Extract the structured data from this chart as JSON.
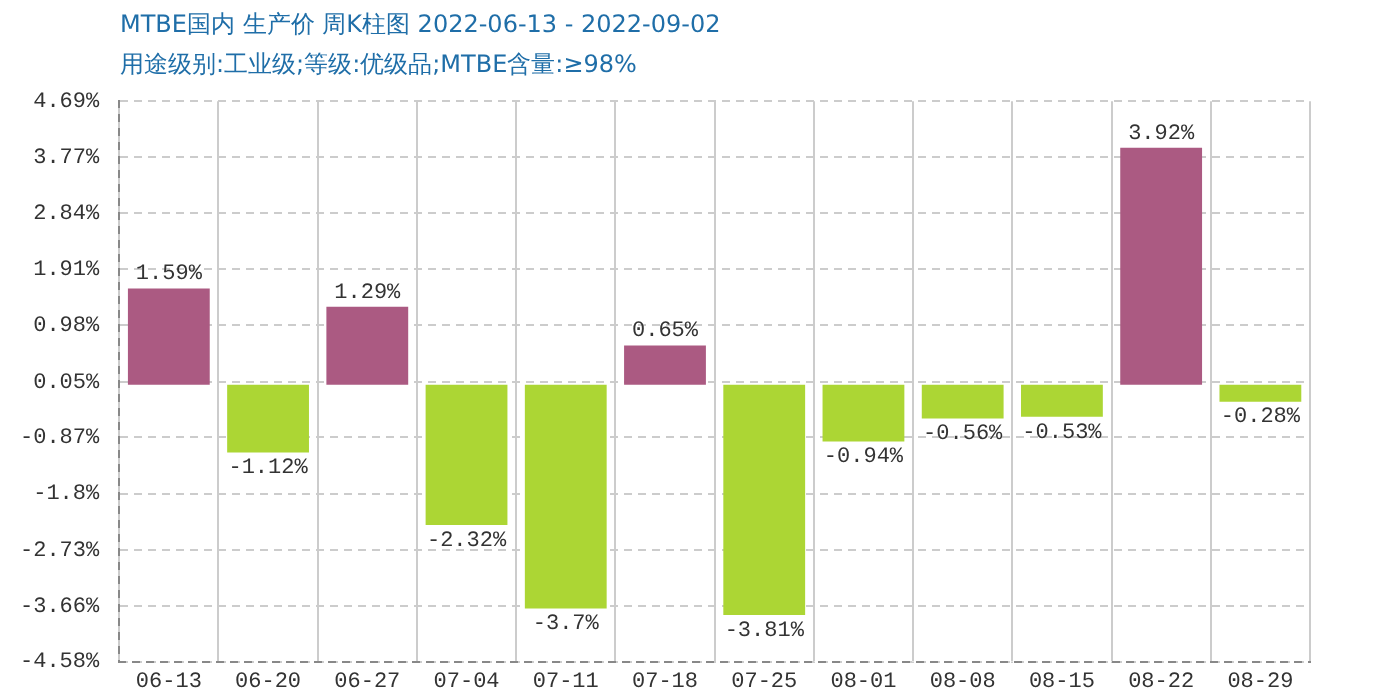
{
  "chart_data": {
    "type": "bar",
    "title": "MTBE国内 生产价 周K柱图 2022-06-13 - 2022-09-02",
    "subtitle": "用途级别:工业级;等级:优级品;MTBE含量:≥98%",
    "categories": [
      "06-13",
      "06-20",
      "06-27",
      "07-04",
      "07-11",
      "07-18",
      "07-25",
      "08-01",
      "08-08",
      "08-15",
      "08-22",
      "08-29"
    ],
    "values": [
      1.59,
      -1.12,
      1.29,
      -2.32,
      -3.7,
      0.65,
      -3.81,
      -0.94,
      -0.56,
      -0.53,
      3.92,
      -0.28
    ],
    "value_labels": [
      "1.59%",
      "-1.12%",
      "1.29%",
      "-2.32%",
      "-3.7%",
      "0.65%",
      "-3.81%",
      "-0.94%",
      "-0.56%",
      "-0.53%",
      "3.92%",
      "-0.28%"
    ],
    "colors": [
      "#ab5a82",
      "#acd634",
      "#ab5a82",
      "#acd634",
      "#acd634",
      "#ab5a82",
      "#acd634",
      "#acd634",
      "#acd634",
      "#acd634",
      "#ab5a82",
      "#acd634"
    ],
    "ylim": [
      -4.58,
      4.69
    ],
    "yticks": [
      {
        "value": 4.69,
        "label": "4.69%"
      },
      {
        "value": 3.77,
        "label": "3.77%"
      },
      {
        "value": 2.84,
        "label": "2.84%"
      },
      {
        "value": 1.91,
        "label": "1.91%"
      },
      {
        "value": 0.98,
        "label": "0.98%"
      },
      {
        "value": 0.05,
        "label": "0.05%"
      },
      {
        "value": -0.87,
        "label": "-0.87%"
      },
      {
        "value": -1.8,
        "label": "-1.8%"
      },
      {
        "value": -2.73,
        "label": "-2.73%"
      },
      {
        "value": -3.66,
        "label": "-3.66%"
      },
      {
        "value": -4.58,
        "label": "-4.58%"
      }
    ],
    "grid": true
  }
}
